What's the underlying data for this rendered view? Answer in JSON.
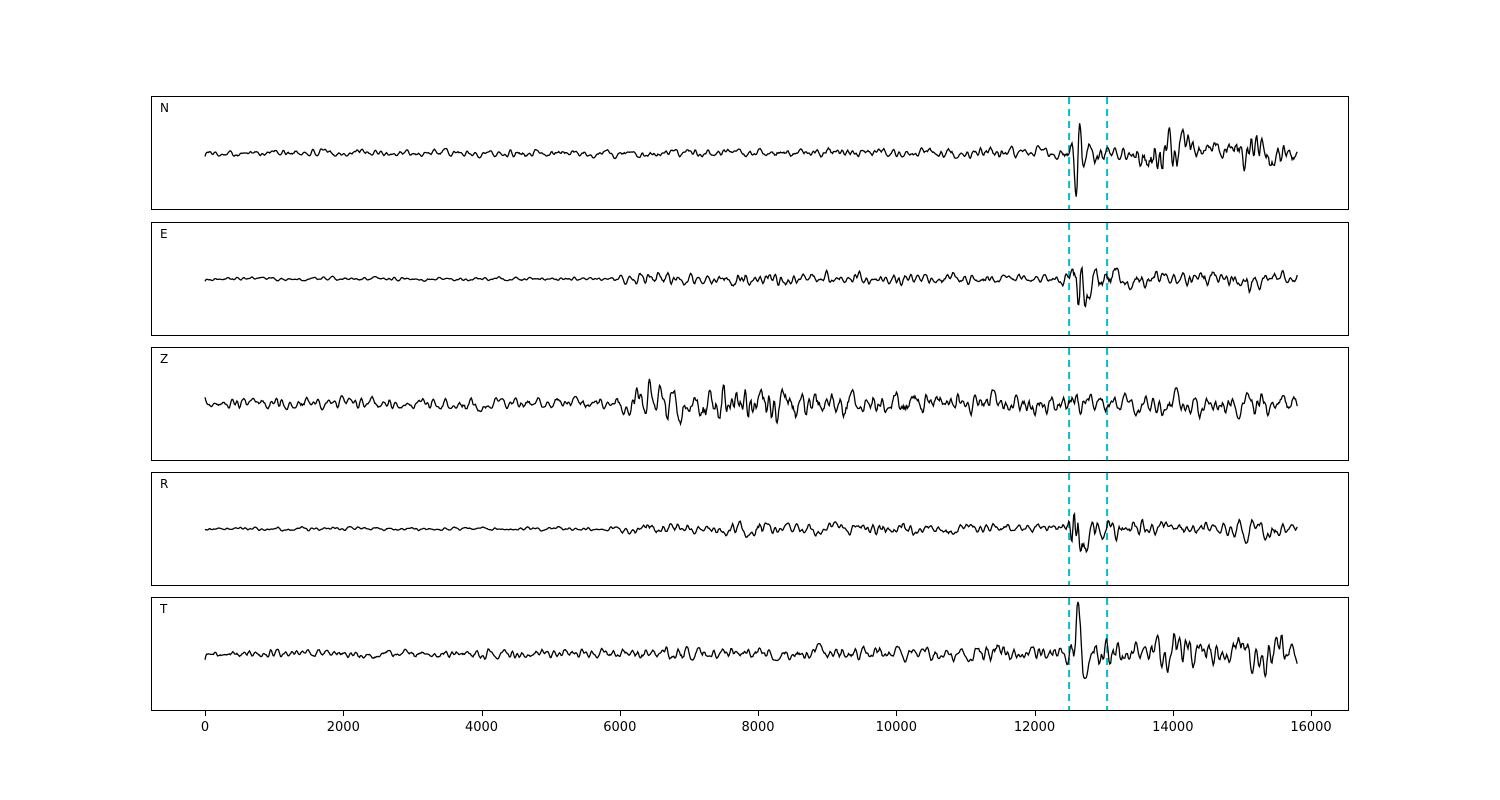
{
  "figure": {
    "background": "#ffffff",
    "trace_color": "#000000",
    "vline_color": "#00bfcf"
  },
  "chart_data": {
    "type": "line",
    "title": "",
    "xlabel": "",
    "ylabel": "",
    "legend": "none",
    "grid": false,
    "x_range": [
      0,
      16000
    ],
    "x_ticks": [
      0,
      2000,
      4000,
      6000,
      8000,
      10000,
      12000,
      14000,
      16000
    ],
    "trace_x_extent": [
      0,
      15800
    ],
    "vlines": [
      12500,
      13050
    ],
    "panels": [
      {
        "label": "N",
        "seed": 101,
        "envelope": [
          [
            0,
            3
          ],
          [
            1000,
            4
          ],
          [
            2000,
            4
          ],
          [
            3000,
            4.5
          ],
          [
            4000,
            4
          ],
          [
            5000,
            4.5
          ],
          [
            6000,
            5
          ],
          [
            7000,
            5
          ],
          [
            8000,
            5
          ],
          [
            9000,
            5
          ],
          [
            10000,
            5.5
          ],
          [
            11000,
            6
          ],
          [
            11400,
            10
          ],
          [
            11700,
            6
          ],
          [
            12300,
            6
          ],
          [
            12500,
            14
          ],
          [
            12620,
            48
          ],
          [
            12750,
            14
          ],
          [
            13000,
            11
          ],
          [
            13400,
            11
          ],
          [
            13800,
            24
          ],
          [
            14100,
            28
          ],
          [
            14400,
            16
          ],
          [
            14800,
            14
          ],
          [
            15100,
            22
          ],
          [
            15400,
            20
          ],
          [
            15700,
            12
          ],
          [
            15800,
            8
          ]
        ]
      },
      {
        "label": "E",
        "seed": 202,
        "envelope": [
          [
            0,
            2
          ],
          [
            2000,
            2
          ],
          [
            4000,
            2
          ],
          [
            5800,
            2
          ],
          [
            6100,
            6
          ],
          [
            6400,
            7
          ],
          [
            7000,
            6
          ],
          [
            7600,
            8
          ],
          [
            8100,
            9
          ],
          [
            8600,
            6
          ],
          [
            9200,
            7
          ],
          [
            10000,
            6
          ],
          [
            10800,
            6
          ],
          [
            11500,
            5
          ],
          [
            12200,
            5
          ],
          [
            12480,
            10
          ],
          [
            12620,
            48
          ],
          [
            12800,
            20
          ],
          [
            13000,
            12
          ],
          [
            13400,
            8
          ],
          [
            13900,
            9
          ],
          [
            14400,
            10
          ],
          [
            14800,
            8
          ],
          [
            15100,
            14
          ],
          [
            15400,
            10
          ],
          [
            15800,
            5
          ]
        ]
      },
      {
        "label": "Z",
        "seed": 303,
        "envelope": [
          [
            0,
            5
          ],
          [
            1000,
            7
          ],
          [
            2000,
            7
          ],
          [
            3000,
            6
          ],
          [
            4000,
            6.5
          ],
          [
            5000,
            6
          ],
          [
            5900,
            6
          ],
          [
            6150,
            14
          ],
          [
            6280,
            30
          ],
          [
            6500,
            22
          ],
          [
            6800,
            24
          ],
          [
            7100,
            20
          ],
          [
            7400,
            26
          ],
          [
            7700,
            18
          ],
          [
            8100,
            22
          ],
          [
            8500,
            16
          ],
          [
            9000,
            18
          ],
          [
            9500,
            14
          ],
          [
            10000,
            16
          ],
          [
            10500,
            13
          ],
          [
            11000,
            14
          ],
          [
            11500,
            12
          ],
          [
            12000,
            13
          ],
          [
            12500,
            13
          ],
          [
            13000,
            12
          ],
          [
            13500,
            13
          ],
          [
            14000,
            12
          ],
          [
            14500,
            13
          ],
          [
            15000,
            12
          ],
          [
            15500,
            11
          ],
          [
            15800,
            9
          ]
        ]
      },
      {
        "label": "R",
        "seed": 404,
        "envelope": [
          [
            0,
            2
          ],
          [
            2000,
            2
          ],
          [
            4000,
            2
          ],
          [
            5800,
            2
          ],
          [
            6100,
            6
          ],
          [
            6500,
            7
          ],
          [
            7000,
            6
          ],
          [
            7500,
            7
          ],
          [
            8000,
            8
          ],
          [
            8500,
            6
          ],
          [
            9000,
            7
          ],
          [
            9500,
            6
          ],
          [
            10000,
            7
          ],
          [
            10500,
            6
          ],
          [
            11000,
            6
          ],
          [
            11600,
            5
          ],
          [
            12200,
            5
          ],
          [
            12480,
            9
          ],
          [
            12620,
            44
          ],
          [
            12800,
            18
          ],
          [
            13050,
            12
          ],
          [
            13400,
            9
          ],
          [
            13800,
            8
          ],
          [
            14300,
            8
          ],
          [
            14700,
            7
          ],
          [
            15000,
            13
          ],
          [
            15300,
            10
          ],
          [
            15800,
            5
          ]
        ]
      },
      {
        "label": "T",
        "seed": 505,
        "envelope": [
          [
            0,
            4
          ],
          [
            1000,
            5
          ],
          [
            2000,
            5
          ],
          [
            3000,
            5
          ],
          [
            4000,
            5.5
          ],
          [
            5000,
            5
          ],
          [
            6000,
            6
          ],
          [
            6500,
            7
          ],
          [
            7000,
            8
          ],
          [
            7500,
            7
          ],
          [
            8000,
            8
          ],
          [
            8500,
            7
          ],
          [
            9000,
            8
          ],
          [
            9500,
            7
          ],
          [
            10000,
            8
          ],
          [
            10500,
            8
          ],
          [
            11000,
            9
          ],
          [
            11400,
            12
          ],
          [
            11800,
            8
          ],
          [
            12300,
            9
          ],
          [
            12500,
            16
          ],
          [
            12620,
            46
          ],
          [
            12780,
            18
          ],
          [
            13000,
            14
          ],
          [
            13300,
            12
          ],
          [
            13700,
            14
          ],
          [
            14000,
            26
          ],
          [
            14300,
            18
          ],
          [
            14700,
            12
          ],
          [
            15000,
            16
          ],
          [
            15300,
            22
          ],
          [
            15600,
            20
          ],
          [
            15800,
            8
          ]
        ]
      }
    ]
  }
}
